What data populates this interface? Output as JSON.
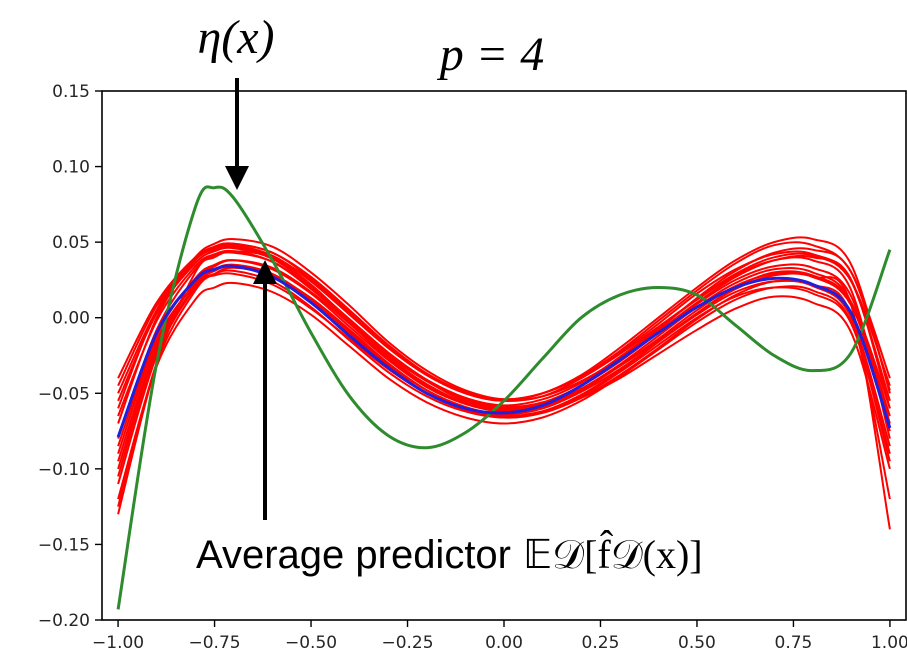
{
  "chart_data": {
    "type": "line",
    "title": "p = 4",
    "xlabel": "",
    "ylabel": "",
    "xlim": [
      -1.0,
      1.0
    ],
    "ylim": [
      -0.2,
      0.15
    ],
    "xticks": [
      -1.0,
      -0.75,
      -0.5,
      -0.25,
      0.0,
      0.25,
      0.5,
      0.75,
      1.0
    ],
    "xtick_labels": [
      "−1.00",
      "−0.75",
      "−0.50",
      "−0.25",
      "0.00",
      "0.25",
      "0.50",
      "0.75",
      "1.00"
    ],
    "yticks": [
      -0.2,
      -0.15,
      -0.1,
      -0.05,
      0.0,
      0.05,
      0.1,
      0.15
    ],
    "ytick_labels": [
      "−0.20",
      "−0.15",
      "−0.10",
      "−0.05",
      "0.00",
      "0.05",
      "0.10",
      "0.15"
    ],
    "grid": false,
    "colors": {
      "true_function": "#2e8b2e",
      "fits": "#ff0000",
      "average": "#1f1fdc"
    },
    "x": [
      -1.0,
      -0.9,
      -0.8,
      -0.75,
      -0.7,
      -0.6,
      -0.5,
      -0.4,
      -0.3,
      -0.2,
      -0.1,
      0.0,
      0.1,
      0.2,
      0.3,
      0.4,
      0.5,
      0.6,
      0.7,
      0.8,
      0.9,
      1.0
    ],
    "series": [
      {
        "role": "true_function",
        "values": [
          -0.193,
          -0.03,
          0.073,
          0.086,
          0.079,
          0.038,
          -0.01,
          -0.052,
          -0.078,
          -0.086,
          -0.076,
          -0.055,
          -0.027,
          0.0,
          0.015,
          0.02,
          0.015,
          -0.005,
          -0.025,
          -0.035,
          -0.023,
          0.045
        ]
      },
      {
        "role": "average",
        "values": [
          -0.079,
          -0.01,
          0.025,
          0.032,
          0.034,
          0.027,
          0.01,
          -0.012,
          -0.033,
          -0.05,
          -0.06,
          -0.063,
          -0.058,
          -0.045,
          -0.028,
          -0.01,
          0.007,
          0.02,
          0.026,
          0.022,
          0.003,
          -0.073
        ]
      },
      {
        "role": "fit",
        "values": [
          -0.13,
          -0.03,
          0.03,
          0.04,
          0.044,
          0.04,
          0.025,
          0.003,
          -0.02,
          -0.038,
          -0.05,
          -0.055,
          -0.052,
          -0.04,
          -0.024,
          -0.006,
          0.012,
          0.028,
          0.038,
          0.038,
          0.018,
          -0.08
        ]
      },
      {
        "role": "fit",
        "values": [
          -0.05,
          0.005,
          0.038,
          0.045,
          0.047,
          0.04,
          0.022,
          -0.002,
          -0.025,
          -0.042,
          -0.055,
          -0.06,
          -0.057,
          -0.047,
          -0.032,
          -0.015,
          0.003,
          0.02,
          0.03,
          0.028,
          0.01,
          -0.06
        ]
      },
      {
        "role": "fit",
        "values": [
          -0.07,
          0.0,
          0.038,
          0.047,
          0.049,
          0.043,
          0.027,
          0.005,
          -0.018,
          -0.037,
          -0.05,
          -0.055,
          -0.05,
          -0.038,
          -0.02,
          0.0,
          0.02,
          0.038,
          0.05,
          0.052,
          0.035,
          -0.05
        ]
      },
      {
        "role": "fit",
        "values": [
          -0.11,
          -0.025,
          0.02,
          0.029,
          0.031,
          0.024,
          0.007,
          -0.015,
          -0.036,
          -0.052,
          -0.062,
          -0.066,
          -0.062,
          -0.052,
          -0.036,
          -0.018,
          0.0,
          0.014,
          0.02,
          0.016,
          -0.004,
          -0.09
        ]
      },
      {
        "role": "fit",
        "values": [
          -0.09,
          -0.015,
          0.022,
          0.028,
          0.029,
          0.022,
          0.006,
          -0.014,
          -0.034,
          -0.05,
          -0.06,
          -0.065,
          -0.062,
          -0.053,
          -0.04,
          -0.024,
          -0.008,
          0.006,
          0.014,
          0.01,
          -0.01,
          -0.1
        ]
      },
      {
        "role": "fit",
        "values": [
          -0.06,
          0.005,
          0.04,
          0.049,
          0.052,
          0.047,
          0.03,
          0.008,
          -0.016,
          -0.035,
          -0.048,
          -0.054,
          -0.05,
          -0.039,
          -0.022,
          -0.002,
          0.018,
          0.036,
          0.048,
          0.048,
          0.03,
          -0.04
        ]
      },
      {
        "role": "fit",
        "values": [
          -0.1,
          -0.02,
          0.024,
          0.034,
          0.038,
          0.033,
          0.017,
          -0.004,
          -0.027,
          -0.045,
          -0.057,
          -0.062,
          -0.059,
          -0.048,
          -0.032,
          -0.014,
          0.005,
          0.021,
          0.029,
          0.027,
          0.008,
          -0.065
        ]
      },
      {
        "role": "fit",
        "values": [
          -0.04,
          0.01,
          0.04,
          0.046,
          0.048,
          0.041,
          0.024,
          0.002,
          -0.02,
          -0.038,
          -0.05,
          -0.055,
          -0.052,
          -0.042,
          -0.027,
          -0.009,
          0.01,
          0.027,
          0.038,
          0.04,
          0.025,
          -0.06
        ]
      },
      {
        "role": "fit",
        "values": [
          -0.12,
          -0.032,
          0.012,
          0.02,
          0.023,
          0.017,
          0.002,
          -0.019,
          -0.04,
          -0.056,
          -0.066,
          -0.07,
          -0.066,
          -0.055,
          -0.039,
          -0.021,
          -0.003,
          0.012,
          0.02,
          0.018,
          -0.003,
          -0.095
        ]
      },
      {
        "role": "fit",
        "values": [
          -0.08,
          -0.008,
          0.032,
          0.041,
          0.043,
          0.037,
          0.02,
          -0.002,
          -0.024,
          -0.042,
          -0.054,
          -0.059,
          -0.056,
          -0.045,
          -0.029,
          -0.01,
          0.009,
          0.025,
          0.034,
          0.033,
          0.014,
          -0.07
        ]
      },
      {
        "role": "fit",
        "values": [
          -0.065,
          -0.002,
          0.034,
          0.042,
          0.044,
          0.037,
          0.019,
          -0.003,
          -0.026,
          -0.044,
          -0.056,
          -0.061,
          -0.057,
          -0.045,
          -0.028,
          -0.008,
          0.013,
          0.031,
          0.043,
          0.045,
          0.03,
          -0.048
        ]
      },
      {
        "role": "fit",
        "values": [
          -0.105,
          -0.022,
          0.021,
          0.031,
          0.034,
          0.028,
          0.012,
          -0.009,
          -0.031,
          -0.048,
          -0.059,
          -0.064,
          -0.06,
          -0.049,
          -0.034,
          -0.016,
          0.002,
          0.017,
          0.024,
          0.021,
          0.0,
          -0.085
        ]
      },
      {
        "role": "fit",
        "values": [
          -0.125,
          -0.03,
          0.018,
          0.029,
          0.033,
          0.028,
          0.013,
          -0.008,
          -0.03,
          -0.048,
          -0.06,
          -0.066,
          -0.063,
          -0.053,
          -0.038,
          -0.02,
          -0.001,
          0.015,
          0.024,
          0.022,
          0.001,
          -0.12
        ]
      },
      {
        "role": "fit",
        "values": [
          -0.055,
          0.003,
          0.036,
          0.044,
          0.046,
          0.039,
          0.021,
          -0.001,
          -0.023,
          -0.041,
          -0.053,
          -0.058,
          -0.054,
          -0.043,
          -0.026,
          -0.007,
          0.012,
          0.029,
          0.04,
          0.041,
          0.024,
          -0.045
        ]
      },
      {
        "role": "fit",
        "values": [
          -0.085,
          -0.012,
          0.026,
          0.035,
          0.038,
          0.032,
          0.016,
          -0.006,
          -0.028,
          -0.046,
          -0.057,
          -0.062,
          -0.058,
          -0.047,
          -0.031,
          -0.012,
          0.007,
          0.023,
          0.032,
          0.03,
          0.01,
          -0.075
        ]
      },
      {
        "role": "fit",
        "values": [
          -0.095,
          -0.018,
          0.023,
          0.032,
          0.035,
          0.029,
          0.012,
          -0.01,
          -0.032,
          -0.05,
          -0.061,
          -0.066,
          -0.062,
          -0.051,
          -0.035,
          -0.016,
          0.003,
          0.019,
          0.028,
          0.027,
          0.008,
          -0.14
        ]
      },
      {
        "role": "fit",
        "values": [
          -0.045,
          0.008,
          0.039,
          0.047,
          0.049,
          0.043,
          0.026,
          0.004,
          -0.019,
          -0.037,
          -0.049,
          -0.054,
          -0.05,
          -0.039,
          -0.023,
          -0.004,
          0.016,
          0.032,
          0.042,
          0.042,
          0.024,
          -0.055
        ]
      }
    ],
    "annotations": {
      "top_label": "η(x)",
      "bottom_label_text": "Average predictor",
      "bottom_label_math": "𝔼𝒟[f̂𝒟(x)]"
    }
  }
}
